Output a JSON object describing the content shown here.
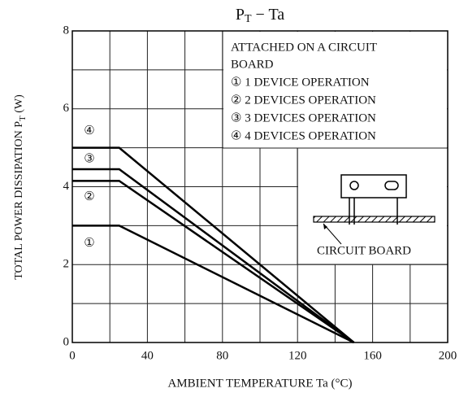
{
  "chart_data": {
    "type": "line",
    "title": [
      "P",
      "T",
      " − Ta"
    ],
    "ylabel": [
      "TOTAL POWER DISSIPATION  P",
      "T",
      "  (W)"
    ],
    "xlabel": "AMBIENT TEMPERATURE   Ta   (°C)",
    "x": [
      0,
      25,
      150
    ],
    "series": [
      {
        "name": "① 1 DEVICE OPERATION",
        "label": "①",
        "color": "#000000",
        "values": [
          3.0,
          3.0,
          0
        ]
      },
      {
        "name": "② 2 DEVICES OPERATION",
        "label": "②",
        "color": "#000000",
        "values": [
          4.15,
          4.15,
          0
        ]
      },
      {
        "name": "③ 3 DEVICES OPERATION",
        "label": "③",
        "color": "#000000",
        "values": [
          4.45,
          4.45,
          0
        ]
      },
      {
        "name": "④ 4 DEVICES OPERATION",
        "label": "④",
        "color": "#000000",
        "values": [
          5.0,
          5.0,
          0
        ]
      }
    ],
    "legend_title": [
      "ATTACHED ON A CIRCUIT",
      "BOARD"
    ],
    "diagram_label": "CIRCUIT BOARD",
    "xlim": [
      0,
      200
    ],
    "xticks": [
      0,
      40,
      80,
      120,
      160,
      200
    ],
    "xgrid": [
      20,
      60,
      100,
      140,
      180
    ],
    "ylim": [
      0,
      8
    ],
    "yticks": [
      0,
      2,
      4,
      6,
      8
    ],
    "ygrid": [
      1,
      3,
      5,
      7
    ],
    "grid": true
  }
}
